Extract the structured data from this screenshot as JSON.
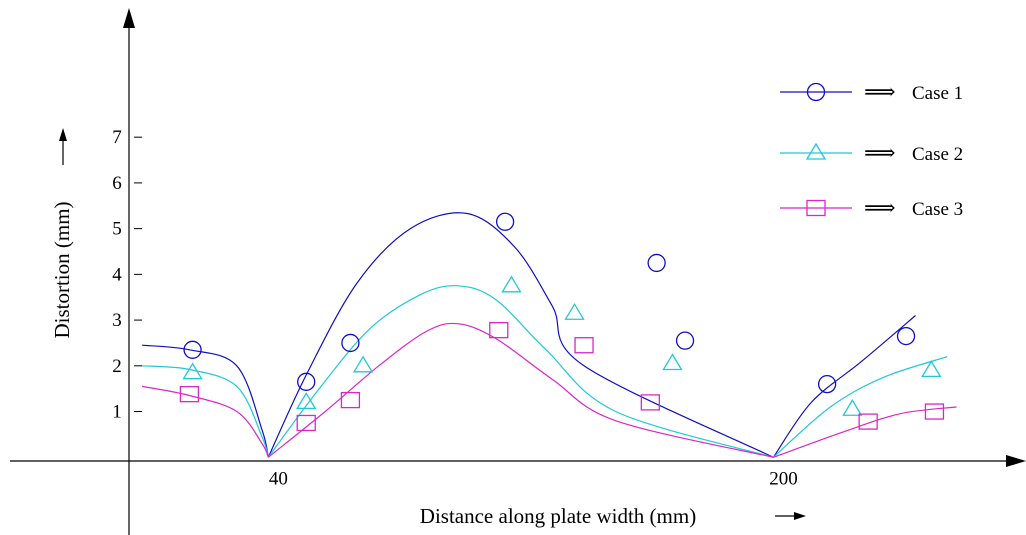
{
  "chart_data": {
    "type": "line",
    "xlabel": "Distance along plate width (mm)",
    "ylabel": "Distortion (mm)",
    "x_ticks": [
      {
        "value": 40,
        "label": "40"
      },
      {
        "value": 200,
        "label": "200"
      }
    ],
    "y_ticks": [
      {
        "value": 1,
        "label": "1"
      },
      {
        "value": 2,
        "label": "2"
      },
      {
        "value": 3,
        "label": "3"
      },
      {
        "value": 4,
        "label": "4"
      },
      {
        "value": 5,
        "label": "5"
      },
      {
        "value": 6,
        "label": "6"
      },
      {
        "value": 7,
        "label": "7"
      }
    ],
    "xlim": [
      -45,
      280
    ],
    "ylim": [
      -1.7,
      10
    ],
    "grid": false,
    "legend_placement": "top-right",
    "legend_arrow": "⟹",
    "series": [
      {
        "name": "Case 1",
        "color": "#1010c0",
        "marker": "circle",
        "curve": [
          [
            0,
            2.45
          ],
          [
            15,
            2.35
          ],
          [
            30,
            2.0
          ],
          [
            38,
            0.6
          ],
          [
            40,
            0
          ],
          [
            52,
            1.8
          ],
          [
            68,
            3.8
          ],
          [
            85,
            5.0
          ],
          [
            103,
            5.33
          ],
          [
            118,
            4.6
          ],
          [
            130,
            3.3
          ],
          [
            140,
            2.0
          ],
          [
            200,
            0
          ],
          [
            212,
            1.2
          ],
          [
            228,
            2.1
          ],
          [
            245,
            3.1
          ]
        ],
        "points": [
          [
            16,
            2.35
          ],
          [
            52,
            1.65
          ],
          [
            66,
            2.5
          ],
          [
            115,
            5.15
          ],
          [
            163,
            4.25
          ],
          [
            172,
            2.55
          ],
          [
            217,
            1.6
          ],
          [
            242,
            2.65
          ]
        ]
      },
      {
        "name": "Case 2",
        "color": "#20c8d8",
        "marker": "triangle",
        "curve": [
          [
            0,
            2.0
          ],
          [
            15,
            1.92
          ],
          [
            30,
            1.55
          ],
          [
            38,
            0.45
          ],
          [
            40,
            0
          ],
          [
            55,
            1.4
          ],
          [
            72,
            2.8
          ],
          [
            88,
            3.55
          ],
          [
            100,
            3.75
          ],
          [
            112,
            3.45
          ],
          [
            128,
            2.35
          ],
          [
            150,
            1.0
          ],
          [
            200,
            0
          ],
          [
            218,
            1.1
          ],
          [
            235,
            1.75
          ],
          [
            255,
            2.2
          ]
        ],
        "points": [
          [
            16,
            1.85
          ],
          [
            52,
            1.2
          ],
          [
            70,
            2.0
          ],
          [
            117,
            3.75
          ],
          [
            137,
            3.15
          ],
          [
            168,
            2.05
          ],
          [
            225,
            1.05
          ],
          [
            250,
            1.9
          ]
        ]
      },
      {
        "name": "Case 3",
        "color": "#d828c8",
        "marker": "square",
        "curve": [
          [
            0,
            1.55
          ],
          [
            15,
            1.35
          ],
          [
            30,
            1.0
          ],
          [
            38,
            0.3
          ],
          [
            40,
            0
          ],
          [
            58,
            1.0
          ],
          [
            75,
            2.0
          ],
          [
            90,
            2.75
          ],
          [
            100,
            2.92
          ],
          [
            112,
            2.6
          ],
          [
            130,
            1.7
          ],
          [
            150,
            0.8
          ],
          [
            200,
            0
          ],
          [
            222,
            0.55
          ],
          [
            240,
            0.95
          ],
          [
            258,
            1.1
          ]
        ],
        "points": [
          [
            15,
            1.38
          ],
          [
            52,
            0.75
          ],
          [
            66,
            1.25
          ],
          [
            113,
            2.78
          ],
          [
            140,
            2.45
          ],
          [
            161,
            1.2
          ],
          [
            230,
            0.78
          ],
          [
            251,
            1.0
          ]
        ]
      }
    ]
  }
}
